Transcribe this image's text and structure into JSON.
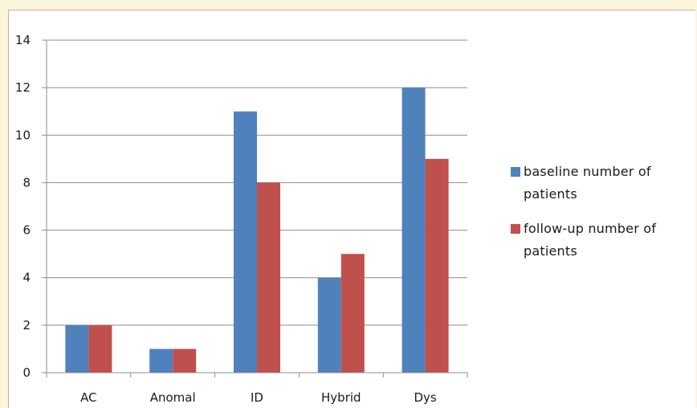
{
  "chart_data": {
    "type": "bar",
    "categories": [
      "AC",
      "Anomal",
      "ID",
      "Hybrid",
      "Dys"
    ],
    "series": [
      {
        "name": "baseline number of patients",
        "values": [
          2,
          1,
          11,
          4,
          12
        ],
        "color": "#4f81bd"
      },
      {
        "name": "follow-up number of patients",
        "values": [
          2,
          1,
          8,
          5,
          9
        ],
        "color": "#c0504d"
      }
    ],
    "yticks": [
      "0",
      "2",
      "4",
      "6",
      "8",
      "10",
      "12",
      "14"
    ],
    "ylim": [
      0,
      14
    ],
    "grid": true,
    "legend": "right",
    "title": "",
    "xlabel": "",
    "ylabel": ""
  }
}
